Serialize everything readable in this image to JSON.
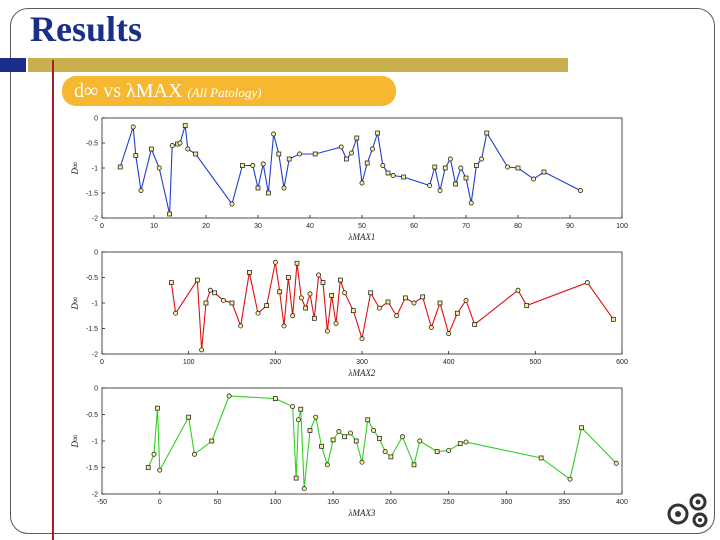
{
  "slide": {
    "title": "Results",
    "subtitle": "d∞ vs λMAX",
    "subtitle_note": "(All Patology)"
  },
  "colors": {
    "title": "#1a2f8a",
    "accent_bar": "#c9b04e",
    "subtitle_bg": "#f6b830",
    "rule": "#a02030"
  },
  "chart_data": [
    {
      "type": "line",
      "xlabel": "λMAX1",
      "ylabel": "D∞",
      "xlim": [
        0,
        100
      ],
      "ylim": [
        -2,
        0
      ],
      "xticks": [
        "0",
        "10",
        "20",
        "30",
        "40",
        "50",
        "60",
        "70",
        "80",
        "90",
        "100"
      ],
      "yticks": [
        "0",
        "-0.5",
        "-1",
        "-1.5",
        "-2"
      ],
      "color": "#1f3fd0",
      "x": [
        3.5,
        6,
        6.5,
        7.5,
        9.5,
        11,
        13,
        13.5,
        14.5,
        15,
        16,
        16.5,
        18,
        25,
        27,
        29,
        30,
        31,
        32,
        33,
        34,
        35,
        36,
        38,
        41,
        46,
        47,
        48,
        49,
        50,
        51,
        52,
        53,
        54,
        55,
        56,
        58,
        63,
        64,
        65,
        66,
        67,
        68,
        69,
        70,
        71,
        72,
        73,
        74,
        78,
        80,
        83,
        85,
        92
      ],
      "y": [
        -0.98,
        -0.18,
        -0.75,
        -1.45,
        -0.62,
        -1.0,
        -1.92,
        -0.55,
        -0.52,
        -0.5,
        -0.15,
        -0.62,
        -0.72,
        -1.72,
        -0.95,
        -0.95,
        -1.4,
        -0.92,
        -1.5,
        -0.32,
        -0.72,
        -1.4,
        -0.82,
        -0.72,
        -0.72,
        -0.58,
        -0.82,
        -0.7,
        -0.4,
        -1.3,
        -0.9,
        -0.62,
        -0.3,
        -0.95,
        -1.1,
        -1.15,
        -1.18,
        -1.35,
        -0.98,
        -1.45,
        -1.0,
        -0.82,
        -1.32,
        -1.0,
        -1.2,
        -1.7,
        -0.95,
        -0.82,
        -0.3,
        -0.98,
        -1.0,
        -1.22,
        -1.08,
        -1.45
      ]
    },
    {
      "type": "line",
      "xlabel": "λMAX2",
      "ylabel": "D∞",
      "xlim": [
        0,
        600
      ],
      "ylim": [
        -2,
        0
      ],
      "xticks": [
        "0",
        "100",
        "200",
        "300",
        "400",
        "500",
        "600"
      ],
      "yticks": [
        "0",
        "-0.5",
        "-1",
        "-1.5",
        "-2"
      ],
      "color": "#e01010",
      "x": [
        80,
        85,
        110,
        115,
        120,
        125,
        130,
        140,
        150,
        160,
        170,
        180,
        190,
        200,
        205,
        210,
        215,
        220,
        225,
        230,
        235,
        240,
        245,
        250,
        255,
        260,
        265,
        270,
        275,
        280,
        290,
        300,
        310,
        320,
        330,
        340,
        350,
        360,
        370,
        380,
        390,
        400,
        410,
        420,
        430,
        480,
        490,
        560,
        590
      ],
      "y": [
        -0.6,
        -1.2,
        -0.55,
        -1.92,
        -1.0,
        -0.75,
        -0.8,
        -0.95,
        -1.0,
        -1.45,
        -0.4,
        -1.2,
        -1.05,
        -0.2,
        -0.78,
        -1.45,
        -0.5,
        -1.25,
        -0.22,
        -0.9,
        -1.1,
        -0.82,
        -1.3,
        -0.45,
        -0.6,
        -1.55,
        -0.85,
        -1.4,
        -0.55,
        -0.8,
        -1.15,
        -1.7,
        -0.8,
        -1.1,
        -0.98,
        -1.25,
        -0.9,
        -1.0,
        -0.88,
        -1.48,
        -1.0,
        -1.6,
        -1.2,
        -0.95,
        -1.42,
        -0.75,
        -1.05,
        -0.6,
        -1.32
      ]
    },
    {
      "type": "line",
      "xlabel": "λMAX3",
      "ylabel": "D∞",
      "xlim": [
        -50,
        400
      ],
      "ylim": [
        -2,
        0
      ],
      "xticks": [
        "-50",
        "0",
        "50",
        "100",
        "150",
        "200",
        "250",
        "300",
        "350",
        "400"
      ],
      "yticks": [
        "0",
        "-0.5",
        "-1",
        "-1.5",
        "-2"
      ],
      "color": "#30d020",
      "x": [
        -10,
        -5,
        -2,
        0,
        25,
        30,
        45,
        60,
        100,
        115,
        118,
        120,
        122,
        125,
        130,
        135,
        140,
        145,
        150,
        155,
        160,
        165,
        170,
        175,
        180,
        185,
        190,
        195,
        200,
        210,
        220,
        225,
        240,
        250,
        260,
        265,
        330,
        355,
        365,
        395
      ],
      "y": [
        -1.5,
        -1.25,
        -0.38,
        -1.55,
        -0.55,
        -1.25,
        -1.0,
        -0.15,
        -0.2,
        -0.35,
        -1.7,
        -0.6,
        -0.4,
        -1.9,
        -0.8,
        -0.55,
        -1.1,
        -1.45,
        -0.98,
        -0.82,
        -0.92,
        -0.85,
        -1.0,
        -1.4,
        -0.6,
        -0.8,
        -0.95,
        -1.2,
        -1.3,
        -0.92,
        -1.45,
        -1.0,
        -1.2,
        -1.18,
        -1.05,
        -1.02,
        -1.32,
        -1.72,
        -0.75,
        -1.42
      ]
    }
  ]
}
